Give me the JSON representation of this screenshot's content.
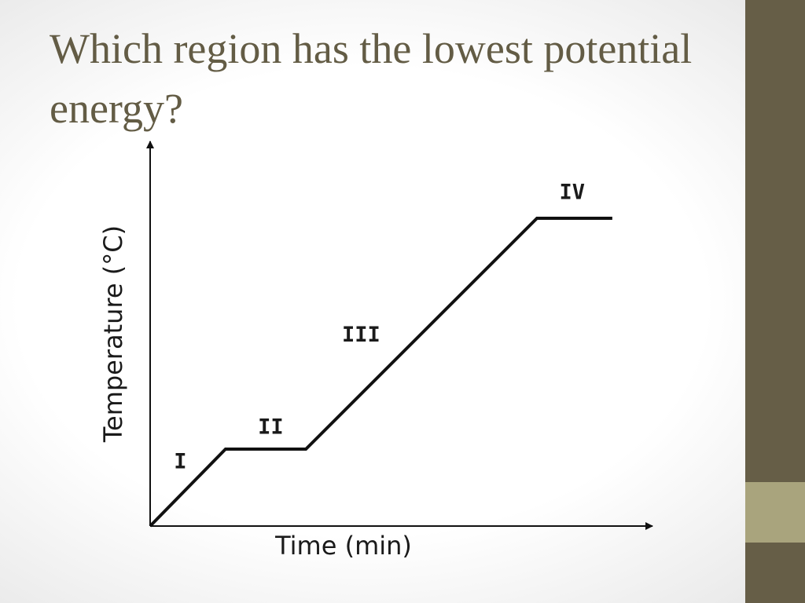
{
  "slide": {
    "title": "Which region has the lowest potential energy?"
  },
  "theme": {
    "title_color": "#635c45",
    "sidebar_color": "#665e47",
    "sidebar_accent_color": "#a9a47d",
    "line_color": "#111111"
  },
  "chart_data": {
    "type": "line",
    "xlabel": "Time (min)",
    "ylabel": "Temperature (°C)",
    "x_ticks": "none",
    "y_ticks": "none",
    "grid": false,
    "legend": "none",
    "xlim": [
      0,
      100
    ],
    "ylim": [
      0,
      100
    ],
    "points": [
      {
        "x": 0,
        "y": 0
      },
      {
        "x": 15,
        "y": 20
      },
      {
        "x": 31,
        "y": 20
      },
      {
        "x": 77,
        "y": 80
      },
      {
        "x": 92,
        "y": 80
      }
    ],
    "regions": [
      {
        "label": "I",
        "x": 6,
        "y": 15
      },
      {
        "label": "II",
        "x": 24,
        "y": 24
      },
      {
        "label": "III",
        "x": 42,
        "y": 48
      },
      {
        "label": "IV",
        "x": 84,
        "y": 85
      }
    ]
  }
}
